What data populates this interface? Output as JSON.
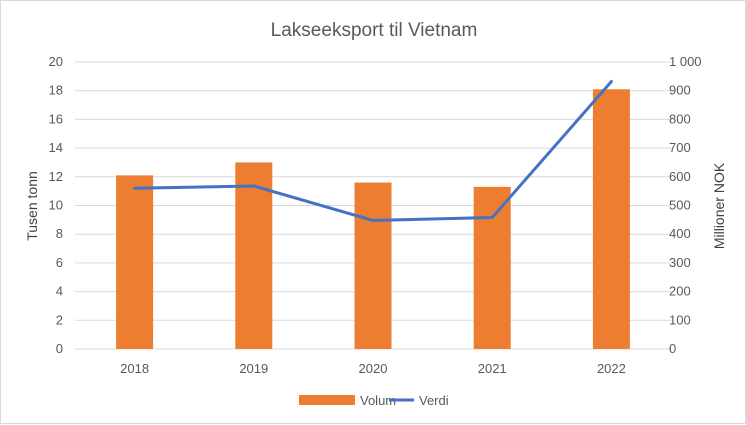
{
  "chart_data": {
    "type": "bar",
    "title": "Lakseeksport til Vietnam",
    "categories": [
      "2018",
      "2019",
      "2020",
      "2021",
      "2022"
    ],
    "y_left": {
      "label": "Tusen tonn",
      "ylim": [
        0,
        20
      ],
      "ticks": [
        "0",
        "2",
        "4",
        "6",
        "8",
        "10",
        "12",
        "14",
        "16",
        "18",
        "20"
      ]
    },
    "y_right": {
      "label": "Millioner NOK",
      "ylim": [
        0,
        1000
      ],
      "ticks": [
        "0",
        "100",
        "200",
        "300",
        "400",
        "500",
        "600",
        "700",
        "800",
        "900",
        "1 000"
      ]
    },
    "series": [
      {
        "name": "Volum",
        "type": "bar",
        "axis": "left",
        "color": "#ED7D31",
        "values": [
          12.1,
          13.0,
          11.6,
          11.3,
          18.1
        ]
      },
      {
        "name": "Verdi",
        "type": "line",
        "axis": "right",
        "color": "#4472C4",
        "values": [
          560,
          568,
          448,
          458,
          932
        ]
      }
    ],
    "grid": true,
    "legend_position": "bottom"
  }
}
